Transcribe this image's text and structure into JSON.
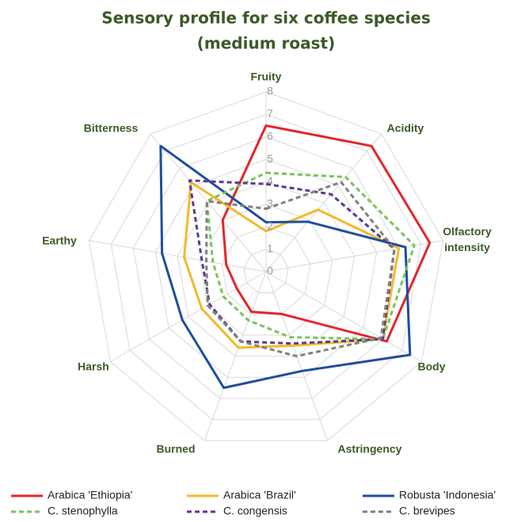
{
  "chart_data": {
    "type": "radar",
    "title": [
      "Sensory profile for six coffee species",
      "(medium roast)"
    ],
    "categories": [
      "Fruity",
      "Acidity",
      "Olfactory intensity",
      "Body",
      "Astringency",
      "Burned",
      "Harsh",
      "Earthy",
      "Bitterness"
    ],
    "ylim": [
      0,
      8
    ],
    "yticks": [
      0,
      1,
      2,
      3,
      4,
      5,
      6,
      7,
      8
    ],
    "grid": true,
    "legend": "bottom",
    "series": [
      {
        "name": "Arabica 'Ethiopia'",
        "color": "#e3262b",
        "dashed": false,
        "values": [
          6.5,
          7.3,
          7.4,
          6.2,
          2.0,
          1.9,
          1.5,
          1.8,
          3.0
        ]
      },
      {
        "name": "Arabica 'Brazil'",
        "color": "#f4b82c",
        "dashed": false,
        "values": [
          1.8,
          3.6,
          6.0,
          6.0,
          3.5,
          3.6,
          3.3,
          3.7,
          5.2
        ]
      },
      {
        "name": "Robusta 'Indonesia'",
        "color": "#1f4e9c",
        "dashed": false,
        "values": [
          2.2,
          2.9,
          6.3,
          7.4,
          4.7,
          5.5,
          4.3,
          4.7,
          7.3
        ]
      },
      {
        "name": "C. stenophylla",
        "color": "#7cc25c",
        "dashed": true,
        "values": [
          4.4,
          5.5,
          6.7,
          6.0,
          3.1,
          2.3,
          2.2,
          2.4,
          4.1
        ]
      },
      {
        "name": "C. congensis",
        "color": "#5b3a8c",
        "dashed": true,
        "values": [
          3.9,
          4.5,
          5.8,
          6.0,
          3.4,
          3.3,
          2.9,
          2.9,
          5.3
        ]
      },
      {
        "name": "C. brevipes",
        "color": "#808080",
        "dashed": true,
        "values": [
          2.8,
          5.2,
          5.8,
          5.9,
          4.0,
          3.3,
          3.0,
          2.7,
          4.1
        ]
      }
    ]
  }
}
